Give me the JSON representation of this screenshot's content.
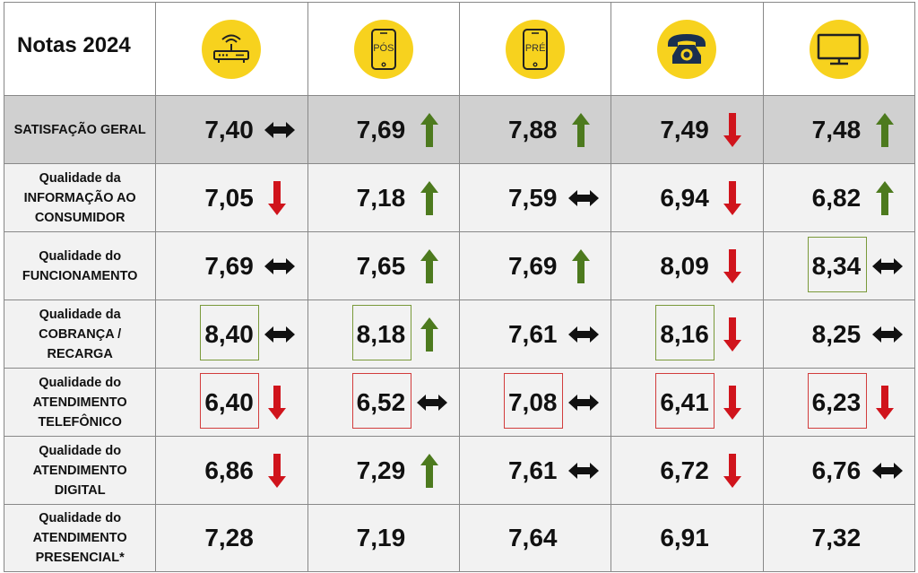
{
  "title": "Notas 2024",
  "columns": [
    {
      "icon": "router-icon",
      "label": ""
    },
    {
      "icon": "smartphone-pos-icon",
      "label": "PÓS"
    },
    {
      "icon": "smartphone-pre-icon",
      "label": "PRÉ"
    },
    {
      "icon": "telephone-icon",
      "label": ""
    },
    {
      "icon": "tv-icon",
      "label": ""
    }
  ],
  "colors": {
    "up": "#4d7a1e",
    "down": "#d0141c",
    "flat": "#111111",
    "icon_bg": "#f7d21e",
    "highlight_green": "#7a9a3a",
    "highlight_red": "#d23c3c"
  },
  "rows": [
    {
      "label": "SATISFAÇÃO GERAL",
      "cells": [
        {
          "value": "7,40",
          "trend": "flat",
          "box": ""
        },
        {
          "value": "7,69",
          "trend": "up",
          "box": ""
        },
        {
          "value": "7,88",
          "trend": "up",
          "box": ""
        },
        {
          "value": "7,49",
          "trend": "down",
          "box": ""
        },
        {
          "value": "7,48",
          "trend": "up",
          "box": ""
        }
      ]
    },
    {
      "label": "Qualidade da INFORMAÇÃO AO CONSUMIDOR",
      "cells": [
        {
          "value": "7,05",
          "trend": "down",
          "box": ""
        },
        {
          "value": "7,18",
          "trend": "up",
          "box": ""
        },
        {
          "value": "7,59",
          "trend": "flat",
          "box": ""
        },
        {
          "value": "6,94",
          "trend": "down",
          "box": ""
        },
        {
          "value": "6,82",
          "trend": "up",
          "box": ""
        }
      ]
    },
    {
      "label": "Qualidade do FUNCIONAMENTO",
      "cells": [
        {
          "value": "7,69",
          "trend": "flat",
          "box": ""
        },
        {
          "value": "7,65",
          "trend": "up",
          "box": ""
        },
        {
          "value": "7,69",
          "trend": "up",
          "box": ""
        },
        {
          "value": "8,09",
          "trend": "down",
          "box": ""
        },
        {
          "value": "8,34",
          "trend": "flat",
          "box": "green"
        }
      ]
    },
    {
      "label": "Qualidade da COBRANÇA / RECARGA",
      "cells": [
        {
          "value": "8,40",
          "trend": "flat",
          "box": "green"
        },
        {
          "value": "8,18",
          "trend": "up",
          "box": "green"
        },
        {
          "value": "7,61",
          "trend": "flat",
          "box": ""
        },
        {
          "value": "8,16",
          "trend": "down",
          "box": "green"
        },
        {
          "value": "8,25",
          "trend": "flat",
          "box": ""
        }
      ]
    },
    {
      "label": "Qualidade do ATENDIMENTO TELEFÔNICO",
      "cells": [
        {
          "value": "6,40",
          "trend": "down",
          "box": "red"
        },
        {
          "value": "6,52",
          "trend": "flat",
          "box": "red"
        },
        {
          "value": "7,08",
          "trend": "flat",
          "box": "red"
        },
        {
          "value": "6,41",
          "trend": "down",
          "box": "red"
        },
        {
          "value": "6,23",
          "trend": "down",
          "box": "red"
        }
      ]
    },
    {
      "label": "Qualidade do ATENDIMENTO DIGITAL",
      "cells": [
        {
          "value": "6,86",
          "trend": "down",
          "box": ""
        },
        {
          "value": "7,29",
          "trend": "up",
          "box": ""
        },
        {
          "value": "7,61",
          "trend": "flat",
          "box": ""
        },
        {
          "value": "6,72",
          "trend": "down",
          "box": ""
        },
        {
          "value": "6,76",
          "trend": "flat",
          "box": ""
        }
      ]
    },
    {
      "label": "Qualidade do ATENDIMENTO PRESENCIAL*",
      "cells": [
        {
          "value": "7,28",
          "trend": "",
          "box": ""
        },
        {
          "value": "7,19",
          "trend": "",
          "box": ""
        },
        {
          "value": "7,64",
          "trend": "",
          "box": ""
        },
        {
          "value": "6,91",
          "trend": "",
          "box": ""
        },
        {
          "value": "7,32",
          "trend": "",
          "box": ""
        }
      ]
    }
  ]
}
